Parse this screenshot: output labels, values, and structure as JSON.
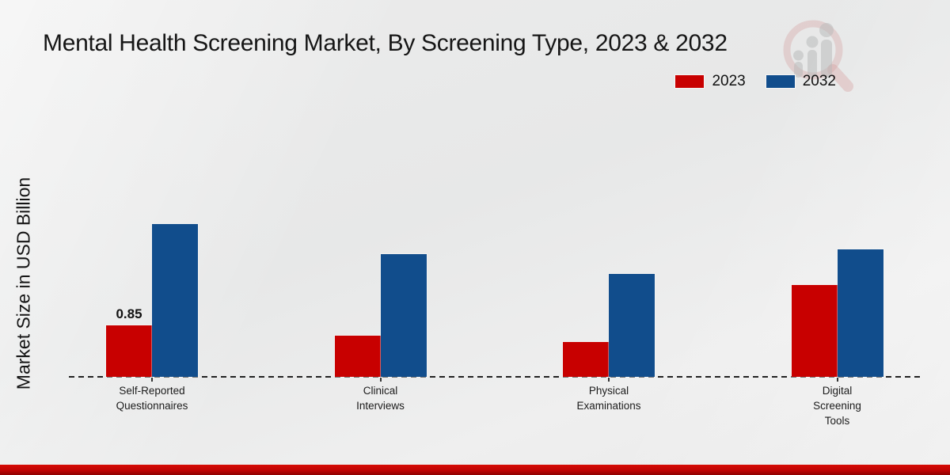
{
  "header": {
    "title": "Mental Health Screening Market, By Screening Type, 2023 & 2032"
  },
  "legend": {
    "items": [
      {
        "label": "2023",
        "color": "#c80000"
      },
      {
        "label": "2032",
        "color": "#114d8c"
      }
    ]
  },
  "colors": {
    "series_2023": "#c80000",
    "series_2032": "#114d8c",
    "footer_band": "#c20505",
    "background": "#e9eaea",
    "baseline": "#222222"
  },
  "chart_data": {
    "type": "bar",
    "title": "Mental Health Screening Market, By Screening Type, 2023 & 2032",
    "categories": [
      "Self-Reported\nQuestionnaires",
      "Clinical\nInterviews",
      "Physical\nExaminations",
      "Digital\nScreening\nTools"
    ],
    "series": [
      {
        "name": "2023",
        "color": "#c80000",
        "values": [
          0.85,
          0.68,
          0.58,
          1.52
        ]
      },
      {
        "name": "2032",
        "color": "#114d8c",
        "values": [
          2.52,
          2.03,
          1.7,
          2.1
        ]
      }
    ],
    "xlabel": "",
    "ylabel": "Market Size in USD Billion",
    "ylim": [
      0,
      3
    ],
    "grid": false,
    "y_axis_visible": false,
    "baseline_style": "dashed",
    "legend_position": "top-right",
    "data_labels": [
      {
        "series": "2023",
        "category_index": 0,
        "text": "0.85"
      }
    ]
  }
}
